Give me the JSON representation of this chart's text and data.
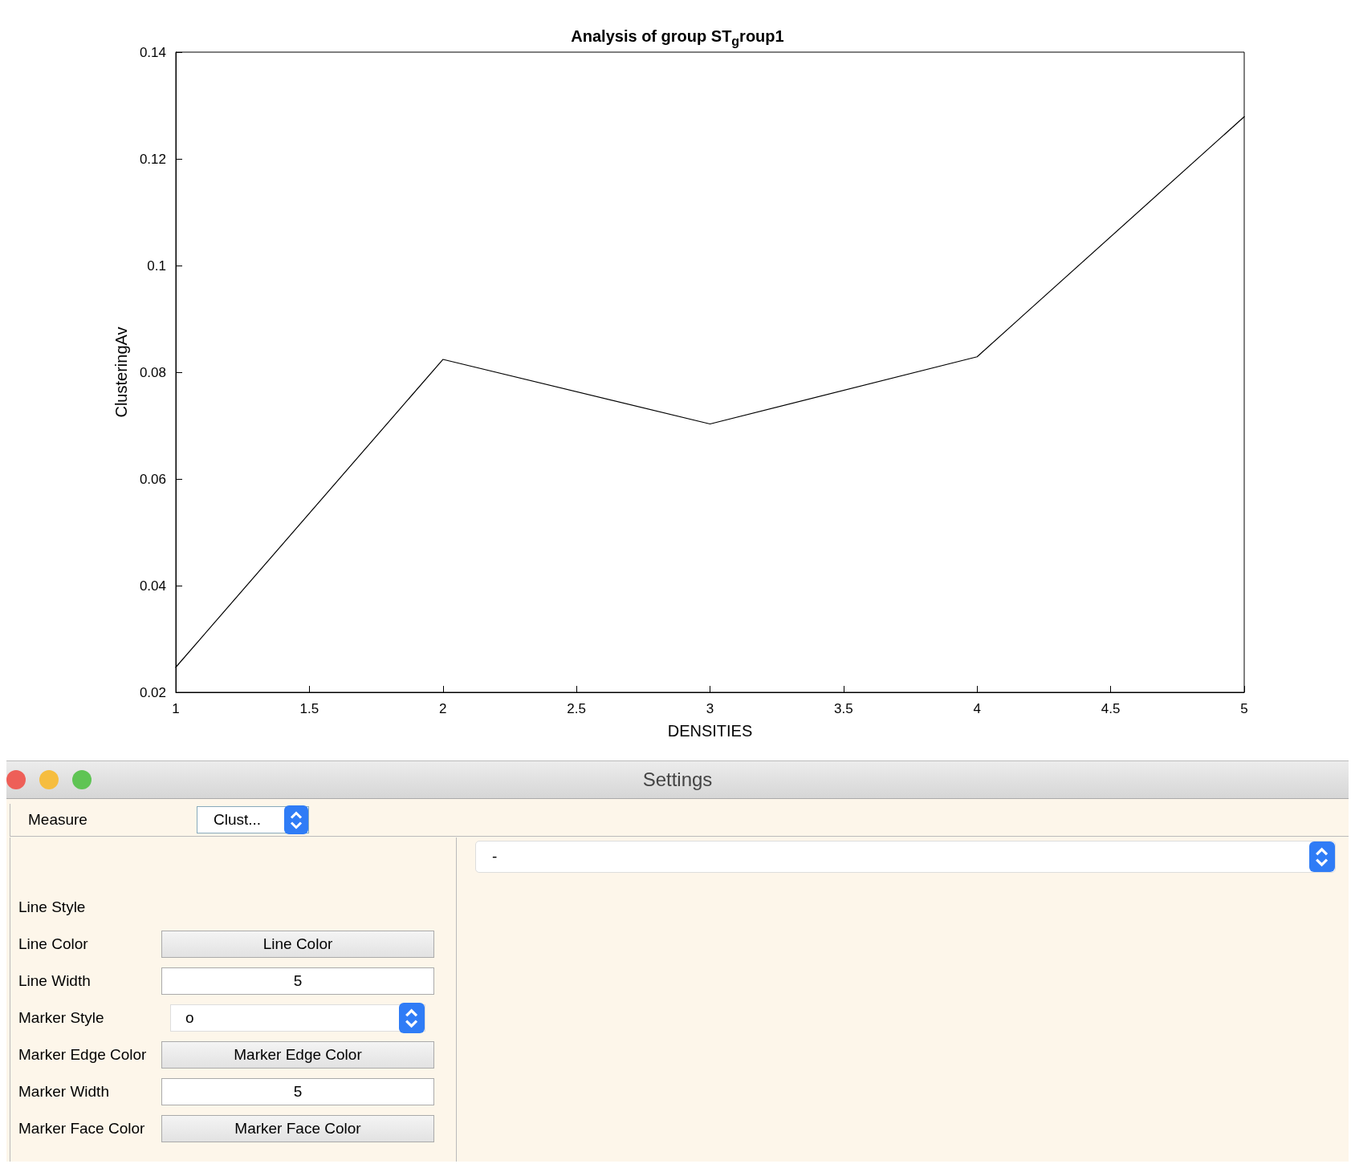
{
  "chart_data": [
    {
      "type": "line",
      "title": "Analysis of group ST$_{g}$roup1",
      "xlabel": "DENSITIES",
      "ylabel": "ClusteringAv",
      "x": [
        1,
        2,
        3,
        4,
        5
      ],
      "series": [
        {
          "color": "#000000",
          "values": [
            0.0247,
            0.0824,
            0.0703,
            0.0829,
            0.1279
          ]
        }
      ],
      "xlim": [
        1,
        5
      ],
      "xticks": [
        1,
        1.5,
        2,
        2.5,
        3,
        3.5,
        4,
        4.5,
        5
      ],
      "ylim": [
        0.02,
        0.14
      ],
      "yticks": [
        0.02,
        0.04,
        0.06,
        0.08,
        0.1,
        0.12,
        0.14
      ],
      "grid": false,
      "marker": "none",
      "line_style": "solid"
    },
    {
      "type": "other",
      "annotations": [
        "Settings",
        "Measure",
        "Clust...",
        "-",
        "Line Style",
        "Line Color",
        "Line Color",
        "Line Width",
        "5",
        "Marker Style",
        "o",
        "Marker Edge Color",
        "Marker Edge Color",
        "Marker Width",
        "5",
        "Marker Face Color",
        "Marker Face Color"
      ]
    }
  ]
}
